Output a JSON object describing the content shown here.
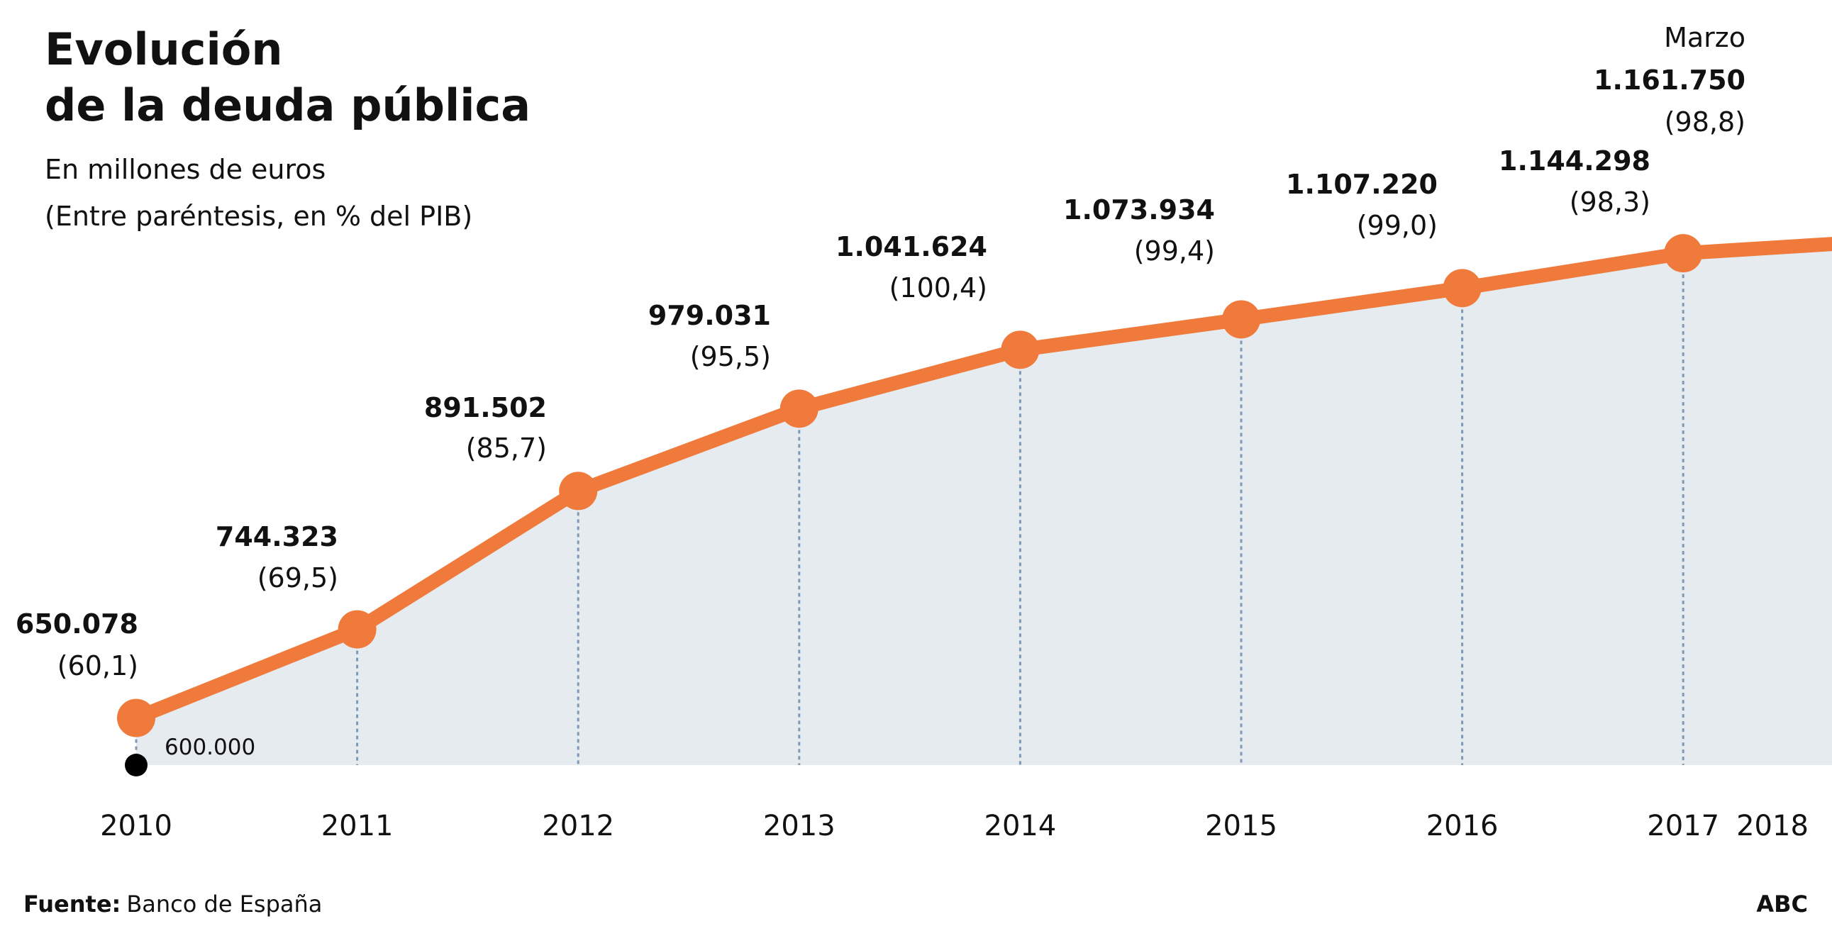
{
  "header": {
    "title_line1": "Evolución",
    "title_line2": "de la deuda pública",
    "subtitle_line1": "En millones de euros",
    "subtitle_line2": "(Entre paréntesis, en % del PIB)"
  },
  "footer": {
    "source_label": "Fuente:",
    "source_value": "Banco de España",
    "brand": "ABC"
  },
  "chart_data": {
    "type": "area",
    "title": "Evolución de la deuda pública",
    "ylabel": "En millones de euros",
    "baseline_label": "600.000",
    "ylim": [
      600000,
      1161750
    ],
    "grid": false,
    "colors": {
      "line": "#ef7a3b",
      "fill": "#e6ebf0",
      "guide": "#7f98b3",
      "base_dot": "#000000"
    },
    "x_tick_labels": [
      "2010",
      "2011",
      "2012",
      "2013",
      "2014",
      "2015",
      "2016",
      "2017",
      "2018"
    ],
    "points": [
      {
        "x": 2010,
        "value": 650078,
        "label": "650.078",
        "pct_label": "(60,1)"
      },
      {
        "x": 2011,
        "value": 744323,
        "label": "744.323",
        "pct_label": "(69,5)"
      },
      {
        "x": 2012,
        "value": 891502,
        "label": "891.502",
        "pct_label": "(85,7)"
      },
      {
        "x": 2013,
        "value": 979031,
        "label": "979.031",
        "pct_label": "(95,5)"
      },
      {
        "x": 2014,
        "value": 1041624,
        "label": "1.041.624",
        "pct_label": "(100,4)"
      },
      {
        "x": 2015,
        "value": 1073934,
        "label": "1.073.934",
        "pct_label": "(99,4)"
      },
      {
        "x": 2016,
        "value": 1107220,
        "label": "1.107.220",
        "pct_label": "(99,0)"
      },
      {
        "x": 2017,
        "value": 1144298,
        "label": "1.144.298",
        "pct_label": "(98,3)"
      },
      {
        "x": "2018-03",
        "value": 1161750,
        "label": "1.161.750",
        "pct_label": "(98,8)",
        "note": "Marzo"
      }
    ]
  }
}
